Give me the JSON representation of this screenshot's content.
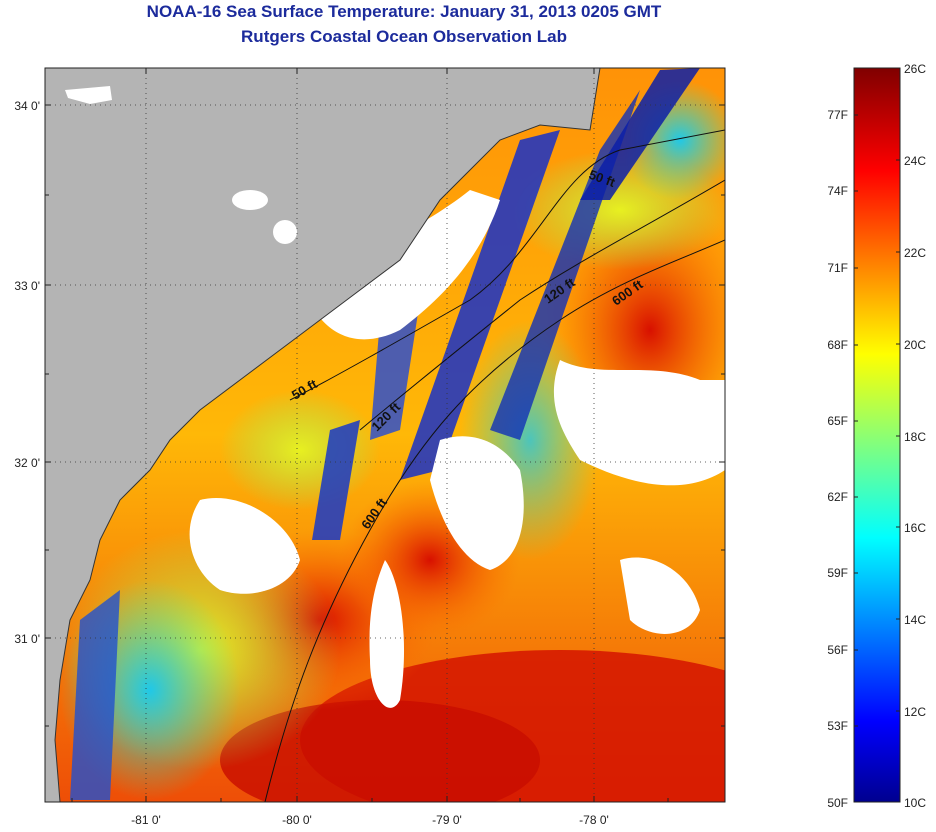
{
  "title": "NOAA-16 Sea Surface Temperature:  January 31, 2013 0205 GMT",
  "subtitle": "Rutgers Coastal Ocean Observation Lab",
  "map": {
    "lon_range": [
      -81.6,
      -77.2
    ],
    "lat_range": [
      30.2,
      34.3
    ],
    "lon_ticks": [
      {
        "value": -81,
        "label": "-81 0'"
      },
      {
        "value": -80,
        "label": "-80 0'"
      },
      {
        "value": -79,
        "label": "-79 0'"
      },
      {
        "value": -78,
        "label": "-78 0'"
      }
    ],
    "lat_ticks": [
      {
        "value": 34,
        "label": "34 0'"
      },
      {
        "value": 33,
        "label": "33 0'"
      },
      {
        "value": 32,
        "label": "32 0'"
      },
      {
        "value": 31,
        "label": "31 0'"
      }
    ],
    "grid": "dotted",
    "land_color": "#b4b4b4",
    "cloud_color": "#ffffff",
    "isobaths": [
      {
        "label": "50 ft"
      },
      {
        "label": "120 ft"
      },
      {
        "label": "600 ft"
      },
      {
        "label": "50 ft"
      },
      {
        "label": "120 ft"
      },
      {
        "label": "600 ft"
      }
    ]
  },
  "colorbar": {
    "celsius_range": [
      10,
      26
    ],
    "colormap": "jet",
    "celsius_labels": [
      "26C",
      "24C",
      "22C",
      "20C",
      "18C",
      "16C",
      "14C",
      "12C",
      "10C"
    ],
    "fahrenheit_labels": [
      "77F",
      "74F",
      "71F",
      "68F",
      "65F",
      "62F",
      "59F",
      "56F",
      "53F",
      "50F"
    ]
  }
}
